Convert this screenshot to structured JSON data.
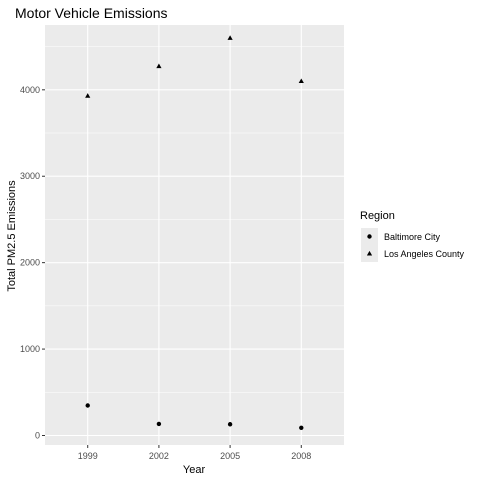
{
  "chart_data": {
    "type": "scatter",
    "title": "Motor Vehicle Emissions",
    "xlabel": "Year",
    "ylabel": "Total PM2.5 Emissions",
    "categories": [
      "1999",
      "2002",
      "2005",
      "2008"
    ],
    "yticks": [
      "0",
      "1000",
      "2000",
      "3000",
      "4000"
    ],
    "ylim": [
      -110,
      4750
    ],
    "grid": true,
    "legend": {
      "title": "Region",
      "placement": "right"
    },
    "series": [
      {
        "name": "Baltimore City",
        "shape": "circle",
        "values": [
          347,
          134,
          130,
          89
        ]
      },
      {
        "name": "Los Angeles County",
        "shape": "triangle",
        "values": [
          3931,
          4274,
          4601,
          4101
        ]
      }
    ],
    "colors": {
      "panel": "#ebebeb",
      "gridline": "#ffffff",
      "points": "#000000",
      "tick_text": "#4d4d4d"
    }
  }
}
